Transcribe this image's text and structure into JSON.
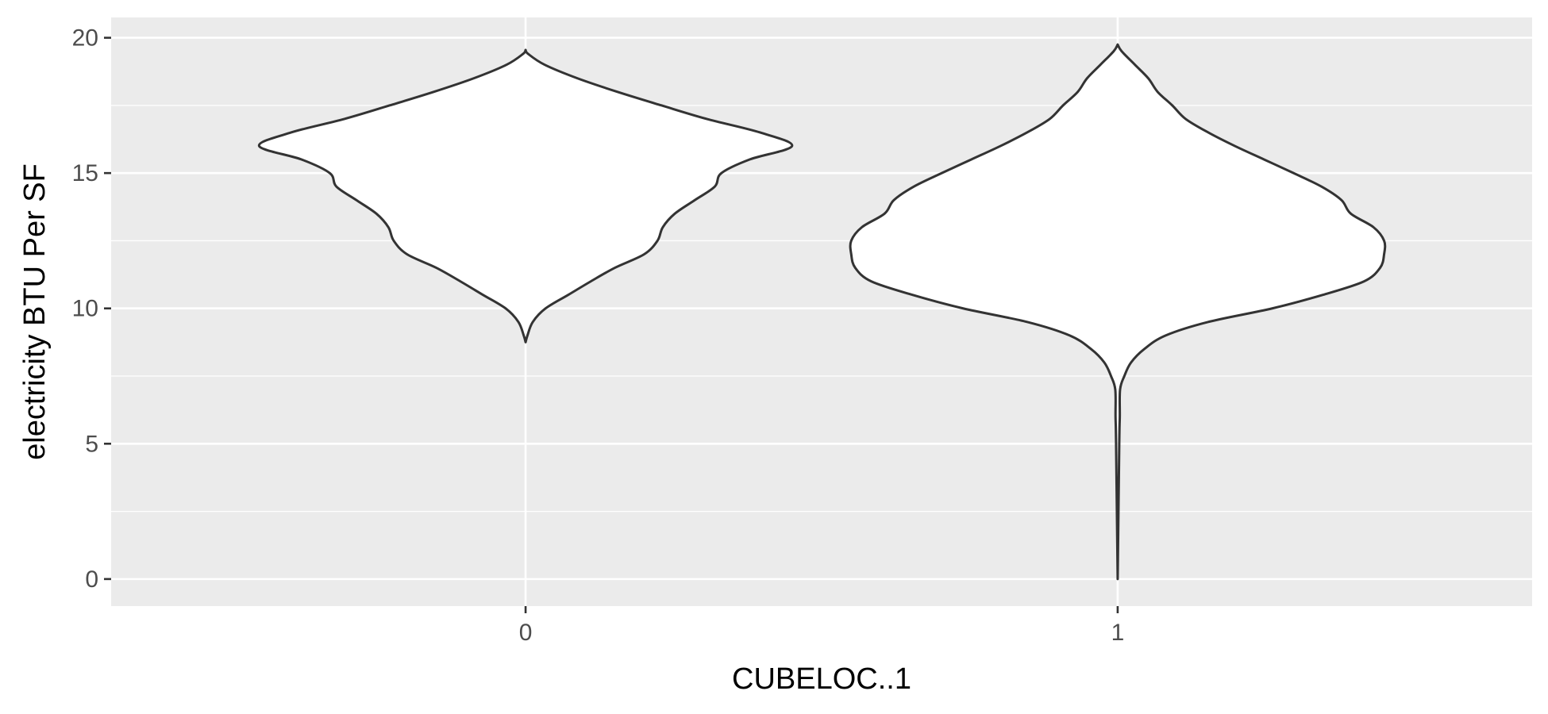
{
  "chart_data": {
    "type": "violin",
    "xlabel": "CUBELOC..1",
    "ylabel": "electricity BTU Per SF",
    "categories": [
      "0",
      "1"
    ],
    "ylim": [
      -1,
      20.75
    ],
    "y_ticks": [
      0,
      5,
      10,
      15,
      20
    ],
    "y_minor_ticks": [
      2.5,
      7.5,
      12.5,
      17.5
    ],
    "grid": true,
    "legend": "none",
    "colors": {
      "panel": "#ebebeb",
      "grid": "#ffffff",
      "outline": "#333333",
      "fill": "#ffffff"
    },
    "violins": [
      {
        "category": "0",
        "y_min": 8.75,
        "y_max": 19.55,
        "density_profile": [
          [
            8.75,
            0.0
          ],
          [
            9.0,
            0.007
          ],
          [
            9.5,
            0.027
          ],
          [
            10.0,
            0.075
          ],
          [
            10.5,
            0.16
          ],
          [
            11.0,
            0.245
          ],
          [
            11.5,
            0.335
          ],
          [
            12.0,
            0.445
          ],
          [
            12.5,
            0.495
          ],
          [
            13.0,
            0.515
          ],
          [
            13.5,
            0.56
          ],
          [
            14.0,
            0.635
          ],
          [
            14.5,
            0.71
          ],
          [
            15.0,
            0.735
          ],
          [
            15.5,
            0.84
          ],
          [
            16.0,
            1.0
          ],
          [
            16.5,
            0.88
          ],
          [
            17.0,
            0.68
          ],
          [
            17.5,
            0.51
          ],
          [
            18.0,
            0.345
          ],
          [
            18.5,
            0.195
          ],
          [
            19.0,
            0.072
          ],
          [
            19.4,
            0.01
          ],
          [
            19.55,
            0.0
          ]
        ]
      },
      {
        "category": "1",
        "y_min": 0.0,
        "y_max": 19.75,
        "density_profile": [
          [
            0.0,
            0.0
          ],
          [
            5.0,
            0.006
          ],
          [
            6.0,
            0.008
          ],
          [
            7.0,
            0.009
          ],
          [
            7.5,
            0.025
          ],
          [
            8.0,
            0.05
          ],
          [
            8.5,
            0.1
          ],
          [
            9.0,
            0.18
          ],
          [
            9.5,
            0.34
          ],
          [
            10.0,
            0.58
          ],
          [
            10.5,
            0.77
          ],
          [
            11.0,
            0.925
          ],
          [
            11.5,
            0.985
          ],
          [
            12.0,
            1.0
          ],
          [
            12.5,
            1.0
          ],
          [
            13.0,
            0.96
          ],
          [
            13.5,
            0.875
          ],
          [
            14.0,
            0.84
          ],
          [
            14.5,
            0.765
          ],
          [
            15.0,
            0.66
          ],
          [
            15.5,
            0.55
          ],
          [
            16.0,
            0.44
          ],
          [
            16.5,
            0.34
          ],
          [
            17.0,
            0.255
          ],
          [
            17.5,
            0.205
          ],
          [
            18.0,
            0.15
          ],
          [
            18.5,
            0.115
          ],
          [
            19.0,
            0.065
          ],
          [
            19.5,
            0.015
          ],
          [
            19.75,
            0.0
          ]
        ]
      }
    ]
  }
}
